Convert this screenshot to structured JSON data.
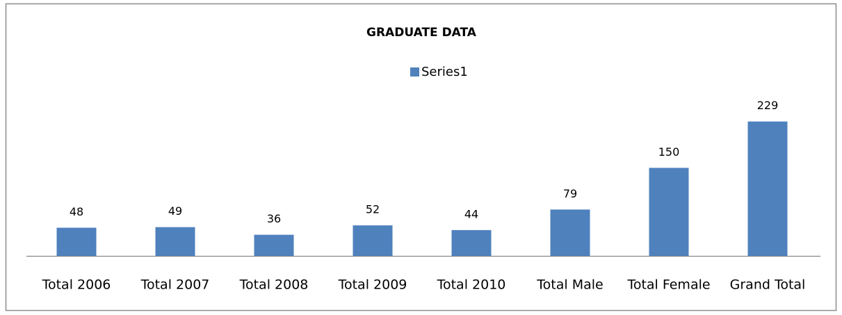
{
  "chart_data": {
    "type": "bar",
    "title": "GRADUATE DATA",
    "categories": [
      "Total 2006",
      "Total 2007",
      "Total 2008",
      "Total 2009",
      "Total 2010",
      "Total Male",
      "Total Female",
      "Grand Total"
    ],
    "series": [
      {
        "name": "Series1",
        "color": "#4f81bd",
        "values": [
          48,
          49,
          36,
          52,
          44,
          79,
          150,
          229
        ]
      }
    ],
    "ylim": [
      0,
      250
    ],
    "legend": "top"
  }
}
